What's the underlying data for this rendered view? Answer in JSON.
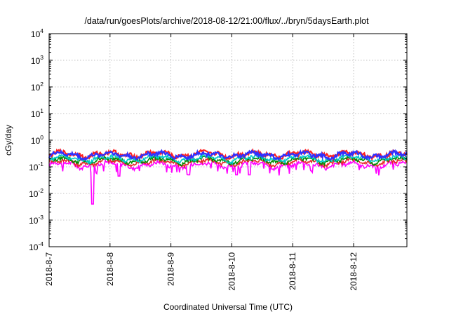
{
  "chart_data": {
    "type": "line",
    "title": "/data/run/goesPlots/archive/2018-08-12/21:00/flux/../bryn/5daysEarth.plot",
    "xlabel": "Coordinated Universal Time (UTC)",
    "ylabel": "cGy/day",
    "yscale": "log",
    "ylim": [
      0.0001,
      10000
    ],
    "y_ticks": [
      {
        "base": "10",
        "exp": "-4",
        "value": 0.0001
      },
      {
        "base": "10",
        "exp": "-3",
        "value": 0.001
      },
      {
        "base": "10",
        "exp": "-2",
        "value": 0.01
      },
      {
        "base": "10",
        "exp": "-1",
        "value": 0.1
      },
      {
        "base": "10",
        "exp": "0",
        "value": 1
      },
      {
        "base": "10",
        "exp": "1",
        "value": 10
      },
      {
        "base": "10",
        "exp": "2",
        "value": 100
      },
      {
        "base": "10",
        "exp": "3",
        "value": 1000
      },
      {
        "base": "10",
        "exp": "4",
        "value": 10000
      }
    ],
    "xlim": [
      "2018-08-07T00:00",
      "2018-08-12T21:00"
    ],
    "x_ticks": [
      "2018-8-7",
      "2018-8-8",
      "2018-8-9",
      "2018-8-10",
      "2018-8-11",
      "2018-8-12"
    ],
    "grid": true,
    "legend": "none",
    "series": [
      {
        "color": "#ff00ff",
        "base": 0.12,
        "dips": [
          {
            "x": "2018-08-07T17:00",
            "y": 0.004
          },
          {
            "x": "2018-08-08T03:30",
            "y": 0.045
          },
          {
            "x": "2018-08-09T07:00",
            "y": 0.05
          },
          {
            "x": "2018-08-10T02:00",
            "y": 0.05
          },
          {
            "x": "2018-08-10T07:00",
            "y": 0.05
          }
        ]
      },
      {
        "color": "#e8282a",
        "base": 0.15,
        "dips": []
      },
      {
        "color": "#008b00",
        "base": 0.18,
        "dips": []
      },
      {
        "color": "#00c8c8",
        "base": 0.21,
        "dips": []
      },
      {
        "color": "#ff2020",
        "base": 0.3,
        "dips": []
      },
      {
        "color": "#3030ff",
        "base": 0.28,
        "dips": []
      }
    ]
  }
}
